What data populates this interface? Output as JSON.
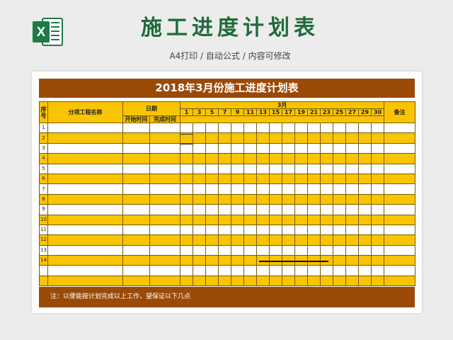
{
  "header": {
    "title": "施工进度计划表",
    "subtitle": "A4打印 / 自动公式 / 内容可修改",
    "logo_letter": "X"
  },
  "sheet": {
    "title": "2018年3月份施工进度计划表",
    "col_index": "序号",
    "col_name": "分项工程名称",
    "col_date": "日期",
    "col_start": "开始时间",
    "col_end": "完成时间",
    "col_month": "3月",
    "col_note": "备注",
    "days": [
      "1",
      "3",
      "5",
      "7",
      "9",
      "11",
      "13",
      "15",
      "17",
      "19",
      "21",
      "23",
      "25",
      "27",
      "29",
      "30"
    ],
    "row_numbers": [
      "1",
      "2",
      "3",
      "4",
      "5",
      "6",
      "7",
      "8",
      "9",
      "10",
      "11",
      "12",
      "13",
      "14",
      "",
      ""
    ],
    "note": "注：以便能按计划完成以上工作，望保证以下几点"
  },
  "colors": {
    "title_green": "#1f6b3a",
    "bar_brown": "#9a4a06",
    "row_yellow": "#f9c400"
  }
}
